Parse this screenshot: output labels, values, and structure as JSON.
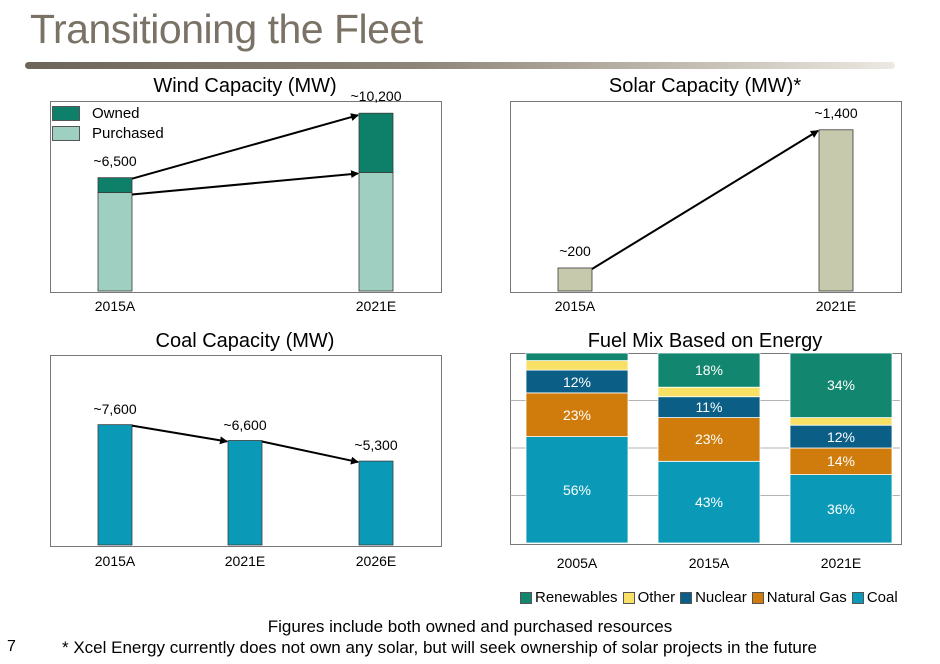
{
  "slide": {
    "title": "Transitioning the Fleet",
    "page_number": "7",
    "footnote_1": "Figures include both owned and purchased resources",
    "footnote_2": "* Xcel Energy currently does not own any solar, but will seek ownership of solar projects in the future"
  },
  "colors": {
    "owned": "#0e7f68",
    "purchased": "#9ecfc1",
    "solar": "#c7c9ad",
    "coal_cap": "#0a9ab8",
    "renewables": "#12866e",
    "other": "#f7e064",
    "nuclear": "#0b5f86",
    "natural_gas": "#d07c0c",
    "coal": "#0a9ab8"
  },
  "chart_data": [
    {
      "id": "wind",
      "type": "bar",
      "title": "Wind Capacity (MW)",
      "categories": [
        "2015A",
        "2021E"
      ],
      "series": [
        {
          "name": "Purchased",
          "values": [
            5650,
            6800
          ]
        },
        {
          "name": "Owned",
          "values": [
            850,
            3400
          ]
        }
      ],
      "totals_labels": [
        "~6,500",
        "~10,200"
      ],
      "ylim": [
        0,
        10900
      ],
      "legend": [
        "Owned",
        "Purchased"
      ]
    },
    {
      "id": "solar",
      "type": "bar",
      "title": "Solar Capacity (MW)*",
      "categories": [
        "2015A",
        "2021E"
      ],
      "values": [
        200,
        1400
      ],
      "value_labels": [
        "~200",
        "~1,400"
      ],
      "ylim": [
        0,
        1650
      ]
    },
    {
      "id": "coal",
      "type": "bar",
      "title": "Coal Capacity (MW)",
      "categories": [
        "2015A",
        "2021E",
        "2026E"
      ],
      "values": [
        7600,
        6600,
        5300
      ],
      "value_labels": [
        "~7,600",
        "~6,600",
        "~5,300"
      ],
      "ylim": [
        0,
        12000
      ]
    },
    {
      "id": "fuel",
      "type": "bar",
      "stacked": true,
      "title": "Fuel Mix Based on Energy",
      "categories": [
        "2005A",
        "2015A",
        "2021E"
      ],
      "ylim": [
        0,
        100
      ],
      "series": [
        {
          "name": "Coal",
          "values": [
            56,
            43,
            36
          ],
          "labels": [
            "56%",
            "43%",
            "36%"
          ]
        },
        {
          "name": "Natural Gas",
          "values": [
            23,
            23,
            14
          ],
          "labels": [
            "23%",
            "23%",
            "14%"
          ]
        },
        {
          "name": "Nuclear",
          "values": [
            12,
            11,
            12
          ],
          "labels": [
            "12%",
            "11%",
            "12%"
          ]
        },
        {
          "name": "Other",
          "values": [
            5,
            5,
            4
          ],
          "labels": [
            "",
            "",
            ""
          ]
        },
        {
          "name": "Renewables",
          "values": [
            4,
            18,
            34
          ],
          "labels": [
            "",
            "18%",
            "34%"
          ]
        }
      ],
      "legend": [
        "Renewables",
        "Other",
        "Nuclear",
        "Natural Gas",
        "Coal"
      ]
    }
  ]
}
